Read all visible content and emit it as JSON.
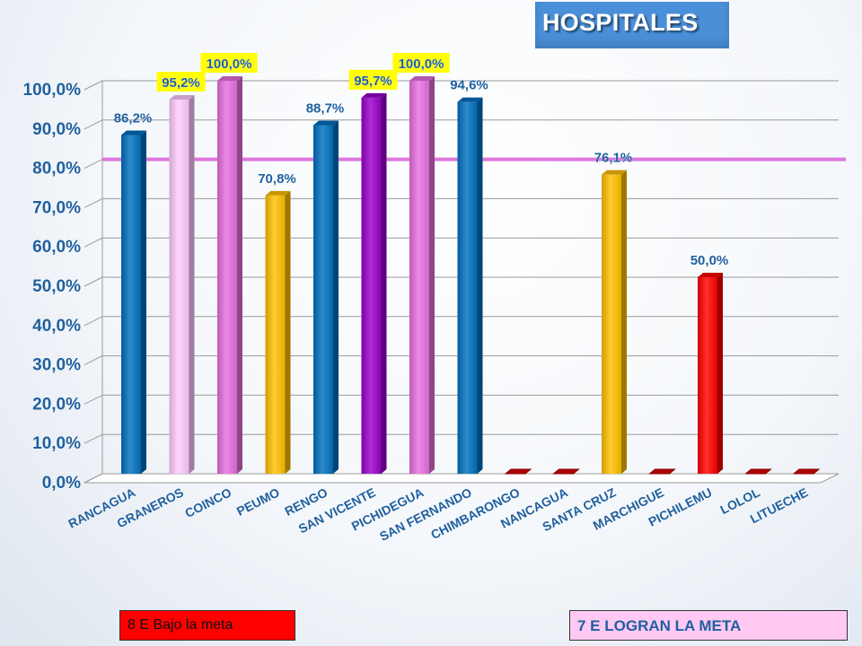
{
  "title": "HOSPITALES",
  "legend": {
    "left_label": "8 E Bajo la meta",
    "right_label": "7 E  LOGRAN LA META",
    "left_color": "#ff0000",
    "right_color": "#ffc9f4"
  },
  "chart_data": {
    "type": "bar",
    "categories": [
      "RANCAGUA",
      "GRANEROS",
      "COINCO",
      "PEUMO",
      "RENGO",
      "SAN VICENTE",
      "PICHIDEGUA",
      "SAN FERNANDO",
      "CHIMBARONGO",
      "NANCAGUA",
      "SANTA CRUZ",
      "MARCHIGUE",
      "PICHILEMU",
      "LOLOL",
      "LITUECHE"
    ],
    "values": [
      86.2,
      95.2,
      100.0,
      70.8,
      88.7,
      95.7,
      100.0,
      94.6,
      0,
      0,
      76.1,
      0,
      50.0,
      0,
      0
    ],
    "data_labels": [
      "86,2%",
      "95,2%",
      "100,0%",
      "70,8%",
      "88,7%",
      "95,7%",
      "100,0%",
      "94,6%",
      "",
      "",
      "76,1%",
      "",
      "50,0%",
      "",
      ""
    ],
    "highlighted_labels": [
      "95,2%",
      "100,0%",
      "95,7%",
      "100,0%"
    ],
    "bar_colors": [
      "#0070c0",
      "#ffccff",
      "#e86fe0",
      "#ffc000",
      "#0070c0",
      "#9900cc",
      "#e86fe0",
      "#0070c0",
      "#e00000",
      "#e00000",
      "#ffc000",
      "#e00000",
      "#ff0000",
      "#e00000",
      "#e00000"
    ],
    "yticks": [
      "0,0%",
      "10,0%",
      "20,0%",
      "30,0%",
      "40,0%",
      "50,0%",
      "60,0%",
      "70,0%",
      "80,0%",
      "90,0%",
      "100,0%"
    ],
    "ylim": [
      0,
      100
    ],
    "target_value": 80,
    "target_color": "#dd77dd",
    "grid": true,
    "xlabel": "",
    "ylabel": ""
  }
}
